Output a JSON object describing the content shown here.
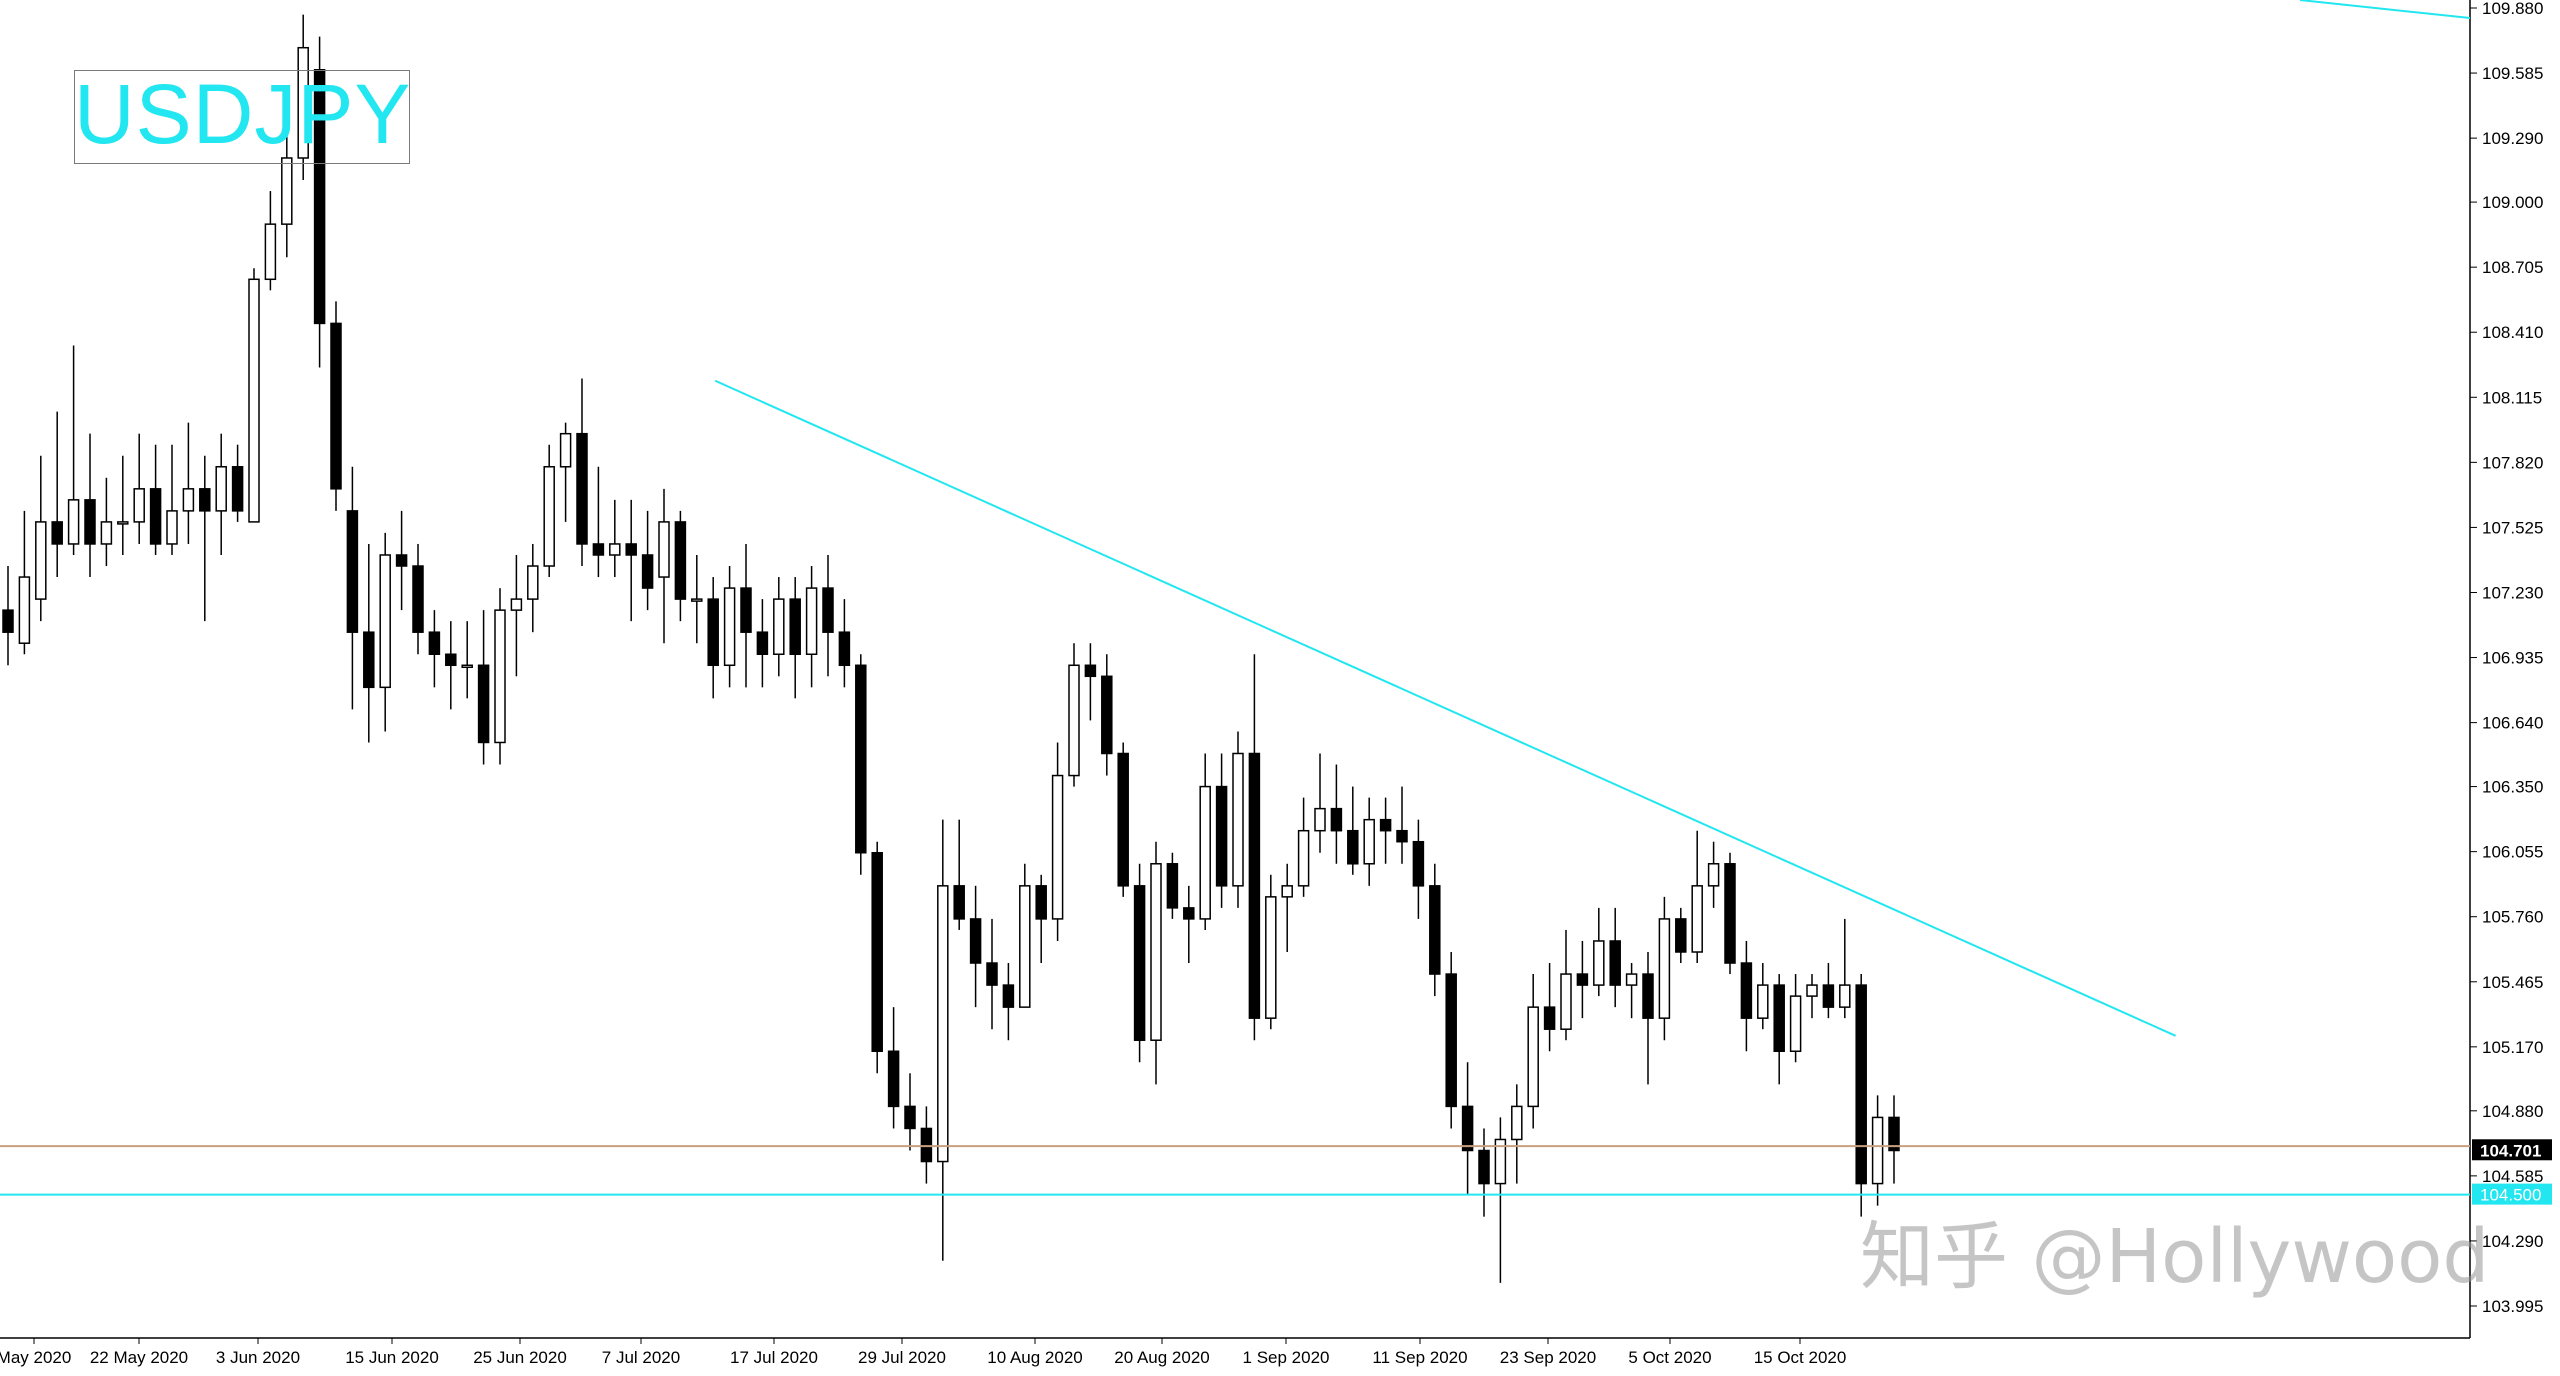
{
  "chart_data": {
    "type": "candlestick",
    "symbol": "USDJPY",
    "ylim": [
      103.9,
      109.88
    ],
    "price_ticks": [
      "109.880",
      "109.585",
      "109.290",
      "109.000",
      "108.705",
      "108.410",
      "108.115",
      "107.820",
      "107.525",
      "107.230",
      "106.935",
      "106.640",
      "106.350",
      "106.055",
      "105.760",
      "105.465",
      "105.170",
      "104.880",
      "104.585",
      "104.290",
      "103.995"
    ],
    "date_labels": [
      "May 2020",
      "22 May 2020",
      "3 Jun 2020",
      "15 Jun 2020",
      "25 Jun 2020",
      "7 Jul 2020",
      "17 Jul 2020",
      "29 Jul 2020",
      "10 Aug 2020",
      "20 Aug 2020",
      "1 Sep 2020",
      "11 Sep 2020",
      "23 Sep 2020",
      "5 Oct 2020",
      "15 Oct 2020"
    ],
    "current_price": "104.701",
    "support_level": "104.500",
    "colors": {
      "up_body": "#ffffff",
      "down_body": "#000000",
      "trendline": "#22e6f0",
      "current_line": "#c8a080",
      "current_label_bg": "#000000",
      "support_label_bg": "#22e6f0"
    },
    "candles": [
      [
        107.15,
        107.05,
        107.35,
        106.9
      ],
      [
        107.0,
        107.3,
        107.6,
        106.95
      ],
      [
        107.2,
        107.55,
        107.85,
        107.1
      ],
      [
        107.55,
        107.45,
        108.05,
        107.3
      ],
      [
        107.45,
        107.65,
        108.35,
        107.4
      ],
      [
        107.65,
        107.45,
        107.95,
        107.3
      ],
      [
        107.45,
        107.55,
        107.75,
        107.35
      ],
      [
        107.55,
        107.55,
        107.85,
        107.4
      ],
      [
        107.55,
        107.7,
        107.95,
        107.45
      ],
      [
        107.7,
        107.45,
        107.9,
        107.4
      ],
      [
        107.45,
        107.6,
        107.9,
        107.4
      ],
      [
        107.6,
        107.7,
        108.0,
        107.45
      ],
      [
        107.7,
        107.6,
        107.85,
        107.1
      ],
      [
        107.6,
        107.8,
        107.95,
        107.4
      ],
      [
        107.8,
        107.6,
        107.9,
        107.55
      ],
      [
        107.55,
        108.65,
        108.7,
        107.55
      ],
      [
        108.65,
        108.9,
        109.05,
        108.6
      ],
      [
        108.9,
        109.2,
        109.45,
        108.75
      ],
      [
        109.2,
        109.7,
        109.85,
        109.1
      ],
      [
        109.6,
        108.45,
        109.75,
        108.25
      ],
      [
        108.45,
        107.7,
        108.55,
        107.6
      ],
      [
        107.6,
        107.05,
        107.8,
        106.7
      ],
      [
        107.05,
        106.8,
        107.45,
        106.55
      ],
      [
        106.8,
        107.4,
        107.5,
        106.6
      ],
      [
        107.4,
        107.35,
        107.6,
        107.15
      ],
      [
        107.35,
        107.05,
        107.45,
        106.95
      ],
      [
        107.05,
        106.95,
        107.15,
        106.8
      ],
      [
        106.95,
        106.9,
        107.1,
        106.7
      ],
      [
        106.9,
        106.9,
        107.1,
        106.75
      ],
      [
        106.9,
        106.55,
        107.15,
        106.45
      ],
      [
        106.55,
        107.15,
        107.25,
        106.45
      ],
      [
        107.15,
        107.2,
        107.4,
        106.85
      ],
      [
        107.2,
        107.35,
        107.45,
        107.05
      ],
      [
        107.35,
        107.8,
        107.9,
        107.3
      ],
      [
        107.8,
        107.95,
        108.0,
        107.55
      ],
      [
        107.95,
        107.45,
        108.2,
        107.35
      ],
      [
        107.45,
        107.4,
        107.8,
        107.3
      ],
      [
        107.4,
        107.45,
        107.65,
        107.3
      ],
      [
        107.45,
        107.4,
        107.65,
        107.1
      ],
      [
        107.4,
        107.25,
        107.6,
        107.15
      ],
      [
        107.3,
        107.55,
        107.7,
        107.0
      ],
      [
        107.55,
        107.2,
        107.6,
        107.1
      ],
      [
        107.2,
        107.2,
        107.4,
        107.0
      ],
      [
        107.2,
        106.9,
        107.3,
        106.75
      ],
      [
        106.9,
        107.25,
        107.35,
        106.8
      ],
      [
        107.25,
        107.05,
        107.45,
        106.8
      ],
      [
        107.05,
        106.95,
        107.2,
        106.8
      ],
      [
        106.95,
        107.2,
        107.3,
        106.85
      ],
      [
        107.2,
        106.95,
        107.3,
        106.75
      ],
      [
        106.95,
        107.25,
        107.35,
        106.8
      ],
      [
        107.25,
        107.05,
        107.4,
        106.85
      ],
      [
        107.05,
        106.9,
        107.2,
        106.8
      ],
      [
        106.9,
        106.05,
        106.95,
        105.95
      ],
      [
        106.05,
        105.15,
        106.1,
        105.05
      ],
      [
        105.15,
        104.9,
        105.35,
        104.8
      ],
      [
        104.9,
        104.8,
        105.05,
        104.7
      ],
      [
        104.8,
        104.65,
        104.9,
        104.55
      ],
      [
        104.65,
        105.9,
        106.2,
        104.2
      ],
      [
        105.9,
        105.75,
        106.2,
        105.7
      ],
      [
        105.75,
        105.55,
        105.9,
        105.35
      ],
      [
        105.55,
        105.45,
        105.75,
        105.25
      ],
      [
        105.45,
        105.35,
        105.55,
        105.2
      ],
      [
        105.35,
        105.9,
        106.0,
        105.35
      ],
      [
        105.9,
        105.75,
        105.95,
        105.55
      ],
      [
        105.75,
        106.4,
        106.55,
        105.65
      ],
      [
        106.4,
        106.9,
        107.0,
        106.35
      ],
      [
        106.9,
        106.85,
        107.0,
        106.65
      ],
      [
        106.85,
        106.5,
        106.95,
        106.4
      ],
      [
        106.5,
        105.9,
        106.55,
        105.85
      ],
      [
        105.9,
        105.2,
        106.0,
        105.1
      ],
      [
        105.2,
        106.0,
        106.1,
        105.0
      ],
      [
        106.0,
        105.8,
        106.05,
        105.75
      ],
      [
        105.8,
        105.75,
        105.9,
        105.55
      ],
      [
        105.75,
        106.35,
        106.5,
        105.7
      ],
      [
        106.35,
        105.9,
        106.5,
        105.8
      ],
      [
        105.9,
        106.5,
        106.6,
        105.8
      ],
      [
        106.5,
        105.3,
        106.95,
        105.2
      ],
      [
        105.3,
        105.85,
        105.95,
        105.25
      ],
      [
        105.85,
        105.9,
        106.0,
        105.6
      ],
      [
        105.9,
        106.15,
        106.3,
        105.85
      ],
      [
        106.15,
        106.25,
        106.5,
        106.05
      ],
      [
        106.25,
        106.15,
        106.45,
        106.0
      ],
      [
        106.15,
        106.0,
        106.35,
        105.95
      ],
      [
        106.0,
        106.2,
        106.3,
        105.9
      ],
      [
        106.2,
        106.15,
        106.3,
        106.0
      ],
      [
        106.15,
        106.1,
        106.35,
        106.0
      ],
      [
        106.1,
        105.9,
        106.2,
        105.75
      ],
      [
        105.9,
        105.5,
        106.0,
        105.4
      ],
      [
        105.5,
        104.9,
        105.6,
        104.8
      ],
      [
        104.9,
        104.7,
        105.1,
        104.5
      ],
      [
        104.7,
        104.55,
        104.8,
        104.4
      ],
      [
        104.55,
        104.75,
        104.85,
        104.1
      ],
      [
        104.75,
        104.9,
        105.0,
        104.55
      ],
      [
        104.9,
        105.35,
        105.5,
        104.8
      ],
      [
        105.35,
        105.25,
        105.55,
        105.15
      ],
      [
        105.25,
        105.5,
        105.7,
        105.2
      ],
      [
        105.5,
        105.45,
        105.65,
        105.3
      ],
      [
        105.45,
        105.65,
        105.8,
        105.4
      ],
      [
        105.65,
        105.45,
        105.8,
        105.35
      ],
      [
        105.45,
        105.5,
        105.55,
        105.3
      ],
      [
        105.5,
        105.3,
        105.6,
        105.0
      ],
      [
        105.3,
        105.75,
        105.85,
        105.2
      ],
      [
        105.75,
        105.6,
        105.8,
        105.55
      ],
      [
        105.6,
        105.9,
        106.15,
        105.55
      ],
      [
        105.9,
        106.0,
        106.1,
        105.8
      ],
      [
        106.0,
        105.55,
        106.05,
        105.5
      ],
      [
        105.55,
        105.3,
        105.65,
        105.15
      ],
      [
        105.3,
        105.45,
        105.55,
        105.25
      ],
      [
        105.45,
        105.15,
        105.5,
        105.0
      ],
      [
        105.15,
        105.4,
        105.5,
        105.1
      ],
      [
        105.4,
        105.45,
        105.5,
        105.3
      ],
      [
        105.45,
        105.35,
        105.55,
        105.3
      ],
      [
        105.35,
        105.45,
        105.75,
        105.3
      ],
      [
        105.45,
        104.55,
        105.5,
        104.4
      ],
      [
        104.55,
        104.85,
        104.95,
        104.45
      ],
      [
        104.85,
        104.7,
        104.95,
        104.55
      ]
    ],
    "trendlines": [
      {
        "x0": 43,
        "y0": 108.19,
        "x1": 129,
        "y1": 105.22
      },
      {
        "x0": 0,
        "y0": 104.72,
        "x1": 160,
        "y1": 104.72,
        "role": "current"
      },
      {
        "x0": 0,
        "y0": 104.5,
        "x1": 160,
        "y1": 104.5,
        "role": "support"
      }
    ]
  },
  "watermark": "知乎 @Hollywood"
}
